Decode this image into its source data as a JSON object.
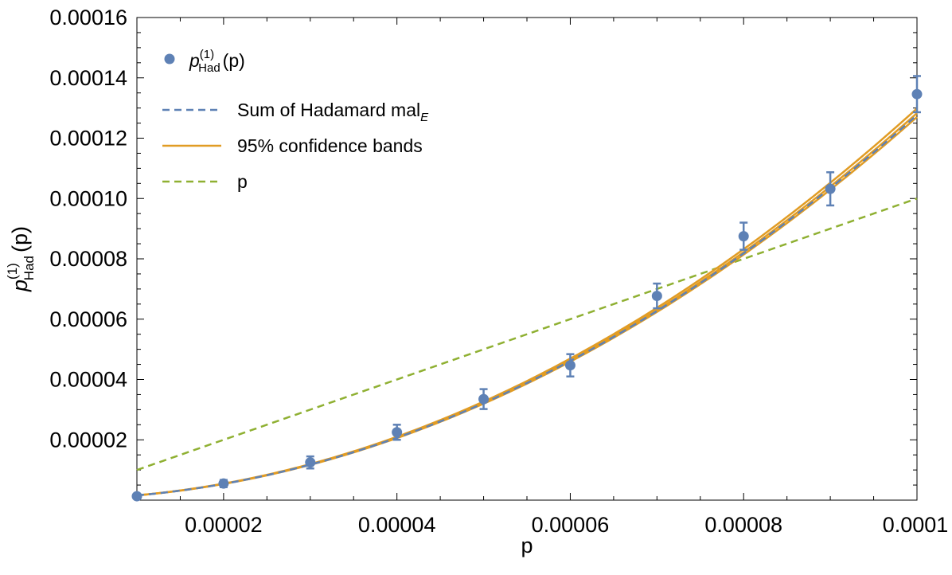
{
  "chart_data": {
    "type": "scatter",
    "title": "",
    "xlabel": "p",
    "ylabel": {
      "base": "p",
      "sup": "(1)",
      "sub": "Had",
      "arg": "(p)"
    },
    "xlim": [
      1e-05,
      0.0001
    ],
    "ylim": [
      0,
      0.00016
    ],
    "x_ticks": [
      {
        "value": 2e-05,
        "label": "0.00002"
      },
      {
        "value": 4e-05,
        "label": "0.00004"
      },
      {
        "value": 6e-05,
        "label": "0.00006"
      },
      {
        "value": 8e-05,
        "label": "0.00008"
      },
      {
        "value": 0.0001,
        "label": "0.0001"
      }
    ],
    "y_ticks": [
      {
        "value": 2e-05,
        "label": "0.00002"
      },
      {
        "value": 4e-05,
        "label": "0.00004"
      },
      {
        "value": 6e-05,
        "label": "0.00006"
      },
      {
        "value": 8e-05,
        "label": "0.00008"
      },
      {
        "value": 0.0001,
        "label": "0.00010"
      },
      {
        "value": 0.00012,
        "label": "0.00012"
      },
      {
        "value": 0.00014,
        "label": "0.00014"
      },
      {
        "value": 0.00016,
        "label": "0.00016"
      }
    ],
    "legend": {
      "placement": "top-left",
      "entries": [
        {
          "kind": "points",
          "base": "p",
          "sup": "(1)",
          "sub": "Had",
          "arg": "(p)",
          "color": "#5e81b5"
        },
        {
          "kind": "dashed",
          "text": "Sum of Hadamard mal",
          "sub": "E",
          "color": "#5e81b5"
        },
        {
          "kind": "solid",
          "text": "95% confidence bands",
          "color": "#e19c24"
        },
        {
          "kind": "dashed",
          "text": "p",
          "color": "#8fb032"
        }
      ]
    },
    "series": [
      {
        "name": "p_Had^(1)(p)",
        "kind": "points",
        "color": "#5e81b5",
        "x": [
          1e-05,
          2e-05,
          3e-05,
          4e-05,
          5e-05,
          6e-05,
          7e-05,
          8e-05,
          9e-05,
          0.0001
        ],
        "y": [
          1.3e-06,
          5.5e-06,
          1.25e-05,
          2.25e-05,
          3.35e-05,
          4.47e-05,
          6.77e-05,
          8.75e-05,
          0.0001032,
          0.0001346
        ],
        "err": [
          6e-07,
          1.2e-06,
          2e-06,
          2.5e-06,
          3.3e-06,
          3.7e-06,
          4.1e-06,
          4.5e-06,
          5.5e-06,
          6e-06
        ]
      },
      {
        "name": "Sum of Hadamard mal_E",
        "kind": "curve",
        "color": "#5e81b5",
        "dash": true,
        "coefficients": {
          "a": 12800,
          "b": 3e-07
        }
      },
      {
        "name": "95% confidence bands",
        "kind": "band",
        "color": "#e19c24",
        "coefficients": {
          "a": 12800,
          "b": 3e-07
        },
        "spread": 1.2e-05
      },
      {
        "name": "p",
        "kind": "line",
        "color": "#8fb032",
        "dash": true,
        "x": [
          1e-05,
          0.0001
        ],
        "y": [
          1e-05,
          0.0001
        ]
      }
    ]
  }
}
